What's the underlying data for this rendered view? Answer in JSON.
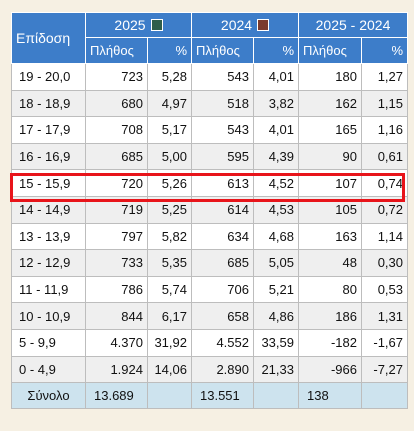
{
  "header": {
    "epidosi": "Επίδοση",
    "year_a": "2025",
    "year_b": "2024",
    "diff": "2025 - 2024",
    "plithos": "Πλήθος",
    "percent": "%",
    "swatch_a_color": "#2e5e4a",
    "swatch_b_color": "#7a3b2e"
  },
  "rows": [
    {
      "range": "19 - 20,0",
      "a_count": "723",
      "a_pct": "5,28",
      "b_count": "543",
      "b_pct": "4,01",
      "d_count": "180",
      "d_pct": "1,27"
    },
    {
      "range": "18 - 18,9",
      "a_count": "680",
      "a_pct": "4,97",
      "b_count": "518",
      "b_pct": "3,82",
      "d_count": "162",
      "d_pct": "1,15"
    },
    {
      "range": "17 - 17,9",
      "a_count": "708",
      "a_pct": "5,17",
      "b_count": "543",
      "b_pct": "4,01",
      "d_count": "165",
      "d_pct": "1,16"
    },
    {
      "range": "16 - 16,9",
      "a_count": "685",
      "a_pct": "5,00",
      "b_count": "595",
      "b_pct": "4,39",
      "d_count": "90",
      "d_pct": "0,61"
    },
    {
      "range": "15 - 15,9",
      "a_count": "720",
      "a_pct": "5,26",
      "b_count": "613",
      "b_pct": "4,52",
      "d_count": "107",
      "d_pct": "0,74"
    },
    {
      "range": "14 - 14,9",
      "a_count": "719",
      "a_pct": "5,25",
      "b_count": "614",
      "b_pct": "4,53",
      "d_count": "105",
      "d_pct": "0,72"
    },
    {
      "range": "13 - 13,9",
      "a_count": "797",
      "a_pct": "5,82",
      "b_count": "634",
      "b_pct": "4,68",
      "d_count": "163",
      "d_pct": "1,14"
    },
    {
      "range": "12 - 12,9",
      "a_count": "733",
      "a_pct": "5,35",
      "b_count": "685",
      "b_pct": "5,05",
      "d_count": "48",
      "d_pct": "0,30"
    },
    {
      "range": "11 - 11,9",
      "a_count": "786",
      "a_pct": "5,74",
      "b_count": "706",
      "b_pct": "5,21",
      "d_count": "80",
      "d_pct": "0,53"
    },
    {
      "range": "10 - 10,9",
      "a_count": "844",
      "a_pct": "6,17",
      "b_count": "658",
      "b_pct": "4,86",
      "d_count": "186",
      "d_pct": "1,31"
    },
    {
      "range": "5 - 9,9",
      "a_count": "4.370",
      "a_pct": "31,92",
      "b_count": "4.552",
      "b_pct": "33,59",
      "d_count": "-182",
      "d_pct": "-1,67"
    },
    {
      "range": "0 - 4,9",
      "a_count": "1.924",
      "a_pct": "14,06",
      "b_count": "2.890",
      "b_pct": "21,33",
      "d_count": "-966",
      "d_pct": "-7,27"
    }
  ],
  "total": {
    "label": "Σύνολο",
    "a_count": "13.689",
    "b_count": "13.551",
    "d_count": "138"
  },
  "highlight": {
    "color": "#e8141a"
  }
}
